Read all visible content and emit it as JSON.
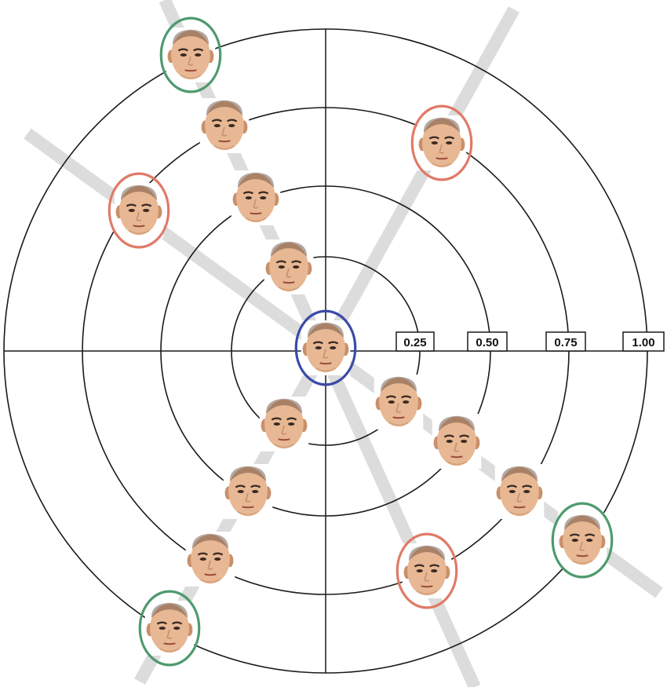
{
  "ring_labels": [
    "0.25",
    "0.50",
    "0.75",
    "1.00"
  ],
  "colors": {
    "ring_stroke": "#1a1a1a",
    "axis_band": "#dcdcdc",
    "center_outline": "#3a4aa8",
    "extreme_outline": "#4e9a6e",
    "alternate_outline": "#e07a66",
    "skin": "#e8b894",
    "skin_shadow": "#c8906a",
    "feature": "#3a2a22",
    "hair": "#5a3e30"
  },
  "faces": [
    {
      "id": "center-face",
      "outline": "center"
    },
    {
      "id": "face-upper-left-1",
      "outline": "none"
    },
    {
      "id": "face-upper-left-2",
      "outline": "none"
    },
    {
      "id": "face-upper-left-3",
      "outline": "none"
    },
    {
      "id": "face-upper-left-4",
      "outline": "extreme"
    },
    {
      "id": "face-left",
      "outline": "alternate"
    },
    {
      "id": "face-upper-right",
      "outline": "alternate"
    },
    {
      "id": "face-lower-right-1",
      "outline": "none"
    },
    {
      "id": "face-lower-right-2",
      "outline": "none"
    },
    {
      "id": "face-lower-right-3",
      "outline": "none"
    },
    {
      "id": "face-lower-right-4",
      "outline": "extreme"
    },
    {
      "id": "face-lower-left-1",
      "outline": "none"
    },
    {
      "id": "face-lower-left-2",
      "outline": "none"
    },
    {
      "id": "face-lower-left-3",
      "outline": "none"
    },
    {
      "id": "face-lower-left-4",
      "outline": "extreme"
    },
    {
      "id": "face-lower-center",
      "outline": "alternate"
    }
  ]
}
